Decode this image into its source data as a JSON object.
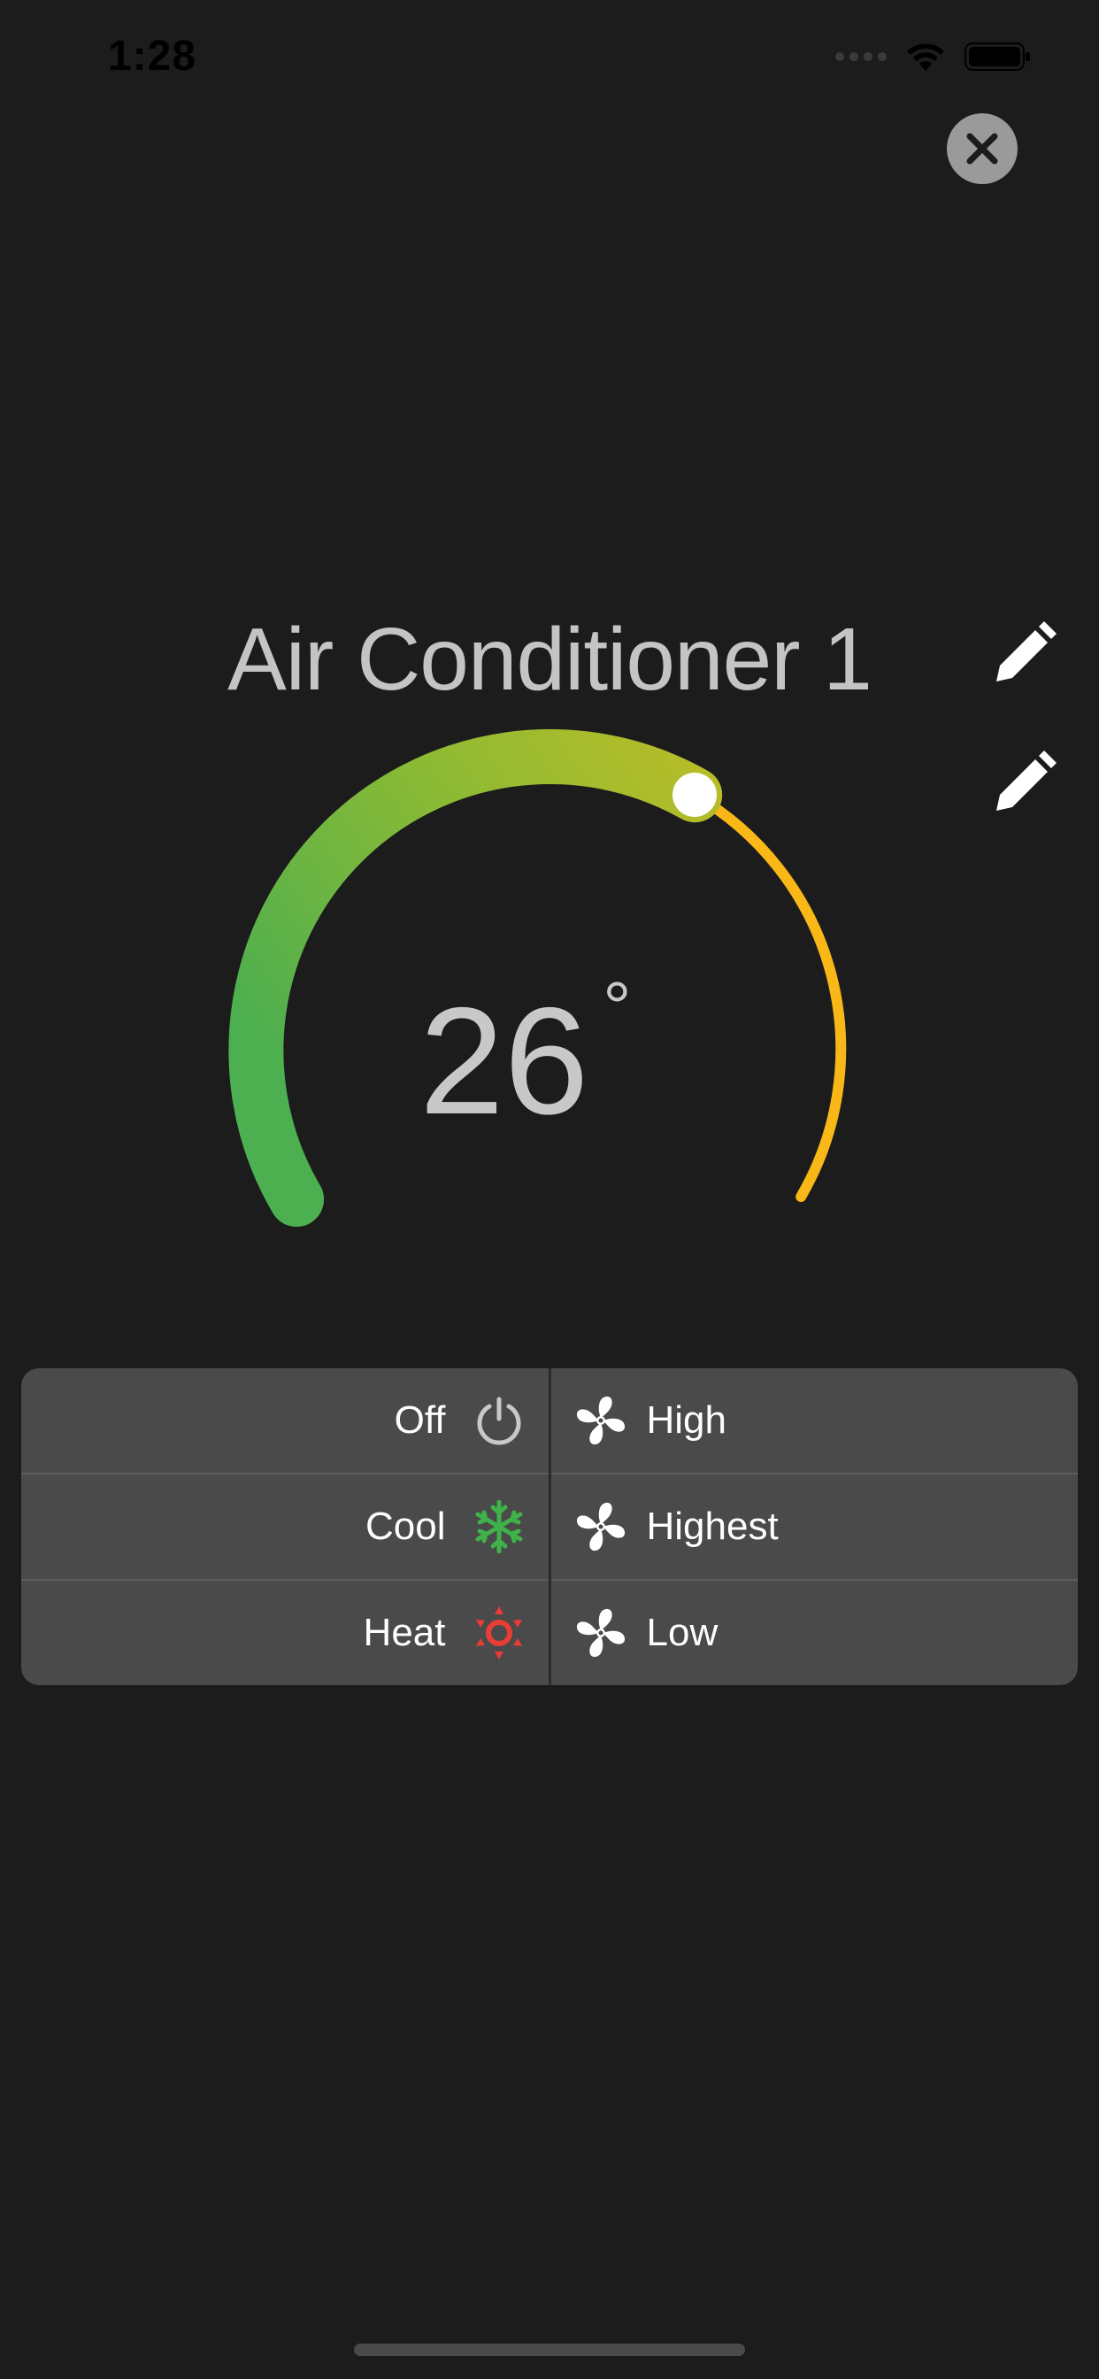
{
  "status_bar": {
    "time": "1:28"
  },
  "device": {
    "name": "Air Conditioner 1"
  },
  "thermostat": {
    "temperature": "26",
    "unit": "°",
    "level_fraction": 0.5,
    "colors": {
      "cool_end": "#4caf50",
      "warm_mid": "#b3bd2c",
      "track": "#f9b718",
      "knob": "#ffffff"
    }
  },
  "modes": [
    {
      "label": "Off",
      "icon": "power-icon",
      "color": "#c8c8c8"
    },
    {
      "label": "Cool",
      "icon": "snowflake-icon",
      "color": "#3fb24a"
    },
    {
      "label": "Heat",
      "icon": "sun-icon",
      "color": "#e83d35"
    }
  ],
  "fan_speeds": [
    {
      "label": "High",
      "icon": "fan-icon"
    },
    {
      "label": "Highest",
      "icon": "fan-icon"
    },
    {
      "label": "Low",
      "icon": "fan-icon"
    }
  ]
}
